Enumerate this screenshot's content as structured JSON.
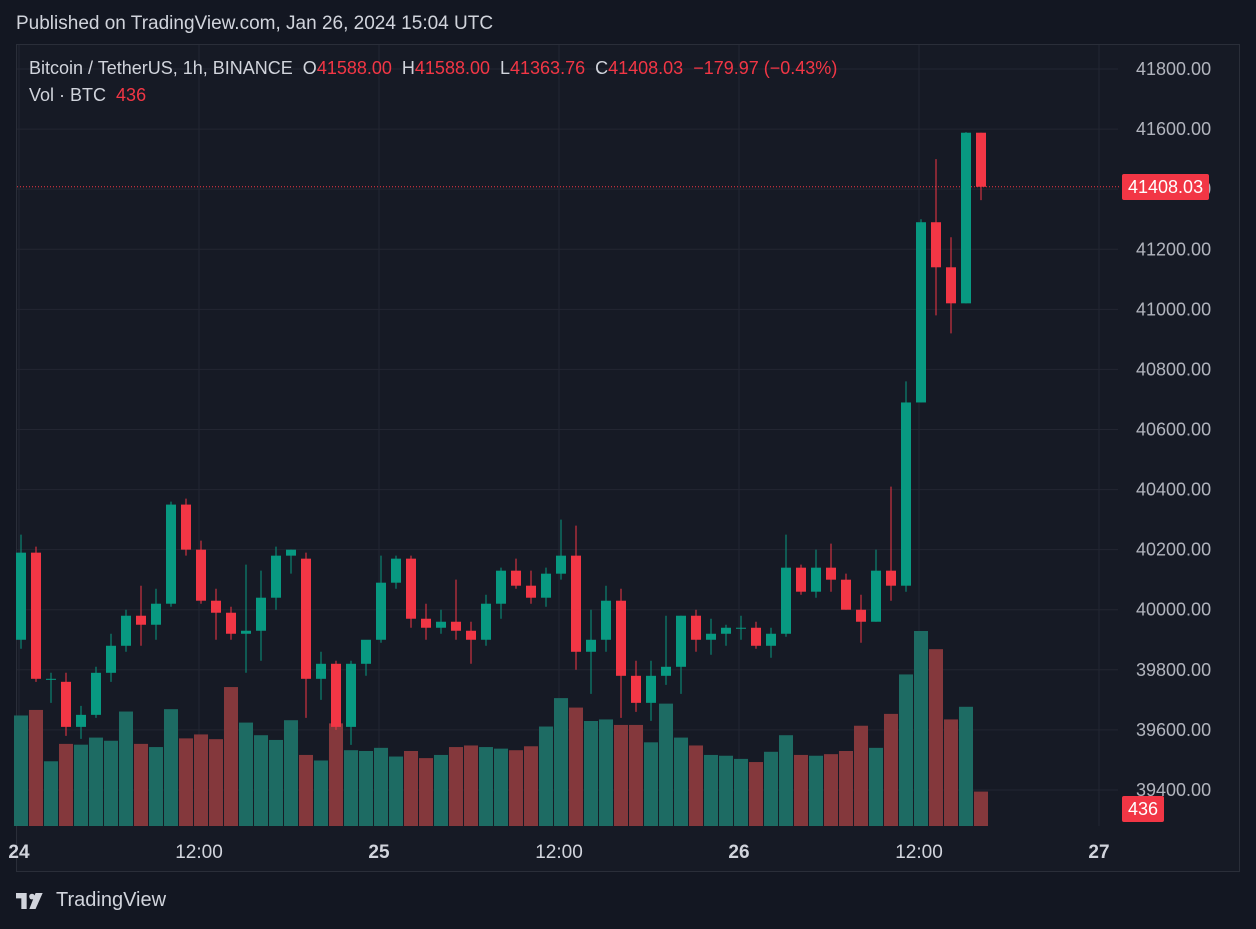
{
  "header": {
    "published": "Published on TradingView.com, Jan 26, 2024 15:04 UTC"
  },
  "legend": {
    "symbol": "Bitcoin / TetherUS, 1h, BINANCE",
    "open_label": "O",
    "open": "41588.00",
    "high_label": "H",
    "high": "41588.00",
    "low_label": "L",
    "low": "41363.76",
    "close_label": "C",
    "close": "41408.03",
    "change": "−179.97 (−0.43%)",
    "vol_label": "Vol · BTC",
    "vol_value": "436"
  },
  "price_tag": "41408.03",
  "vol_tag": "436",
  "footer": {
    "brand": "TradingView"
  },
  "colors": {
    "up": "#089981",
    "down": "#f23645",
    "background": "#161a25",
    "grid": "#232632"
  },
  "chart_data": {
    "type": "candlestick",
    "interval": "1h",
    "yaxis": {
      "ticks": [
        39400,
        39600,
        39800,
        40000,
        40200,
        40400,
        40600,
        40800,
        41000,
        41200,
        41400,
        41600,
        41800
      ],
      "tick_labels": [
        "39400.00",
        "39600.00",
        "39800.00",
        "40000.00",
        "40200.00",
        "40400.00",
        "40600.00",
        "40800.00",
        "41000.00",
        "41200.00",
        "41400.00",
        "41600.00",
        "41800.00"
      ],
      "range": [
        39280,
        41880
      ]
    },
    "xaxis": {
      "tick_labels": [
        "24",
        "12:00",
        "25",
        "12:00",
        "26",
        "12:00",
        "27"
      ],
      "tick_index": [
        0,
        12,
        24,
        36,
        48,
        60,
        72
      ]
    },
    "last_price": 41408.03,
    "candles": [
      {
        "o": 39900,
        "h": 40250,
        "l": 39870,
        "c": 40190
      },
      {
        "o": 40190,
        "h": 40210,
        "l": 39760,
        "c": 39770
      },
      {
        "o": 39770,
        "h": 39790,
        "l": 39690,
        "c": 39770
      },
      {
        "o": 39760,
        "h": 39790,
        "l": 39580,
        "c": 39610
      },
      {
        "o": 39610,
        "h": 39680,
        "l": 39570,
        "c": 39650
      },
      {
        "o": 39650,
        "h": 39810,
        "l": 39640,
        "c": 39790
      },
      {
        "o": 39790,
        "h": 39920,
        "l": 39760,
        "c": 39880
      },
      {
        "o": 39880,
        "h": 40000,
        "l": 39860,
        "c": 39980
      },
      {
        "o": 39980,
        "h": 40080,
        "l": 39880,
        "c": 39950
      },
      {
        "o": 39950,
        "h": 40070,
        "l": 39900,
        "c": 40020
      },
      {
        "o": 40020,
        "h": 40360,
        "l": 40010,
        "c": 40350
      },
      {
        "o": 40350,
        "h": 40370,
        "l": 40180,
        "c": 40200
      },
      {
        "o": 40200,
        "h": 40230,
        "l": 40020,
        "c": 40030
      },
      {
        "o": 40030,
        "h": 40070,
        "l": 39900,
        "c": 39990
      },
      {
        "o": 39990,
        "h": 40010,
        "l": 39900,
        "c": 39920
      },
      {
        "o": 39920,
        "h": 40150,
        "l": 39790,
        "c": 39930
      },
      {
        "o": 39930,
        "h": 40130,
        "l": 39830,
        "c": 40040
      },
      {
        "o": 40040,
        "h": 40210,
        "l": 40000,
        "c": 40180
      },
      {
        "o": 40180,
        "h": 40200,
        "l": 40120,
        "c": 40200
      },
      {
        "o": 40170,
        "h": 40190,
        "l": 39640,
        "c": 39770
      },
      {
        "o": 39770,
        "h": 39860,
        "l": 39700,
        "c": 39820
      },
      {
        "o": 39820,
        "h": 39830,
        "l": 39600,
        "c": 39610
      },
      {
        "o": 39610,
        "h": 39830,
        "l": 39550,
        "c": 39820
      },
      {
        "o": 39820,
        "h": 39880,
        "l": 39780,
        "c": 39900
      },
      {
        "o": 39900,
        "h": 40180,
        "l": 39890,
        "c": 40090
      },
      {
        "o": 40090,
        "h": 40180,
        "l": 40070,
        "c": 40170
      },
      {
        "o": 40170,
        "h": 40180,
        "l": 39940,
        "c": 39970
      },
      {
        "o": 39970,
        "h": 40020,
        "l": 39900,
        "c": 39940
      },
      {
        "o": 39940,
        "h": 40000,
        "l": 39920,
        "c": 39960
      },
      {
        "o": 39960,
        "h": 40100,
        "l": 39900,
        "c": 39930
      },
      {
        "o": 39930,
        "h": 39960,
        "l": 39820,
        "c": 39900
      },
      {
        "o": 39900,
        "h": 40050,
        "l": 39880,
        "c": 40020
      },
      {
        "o": 40020,
        "h": 40140,
        "l": 39970,
        "c": 40130
      },
      {
        "o": 40130,
        "h": 40170,
        "l": 40070,
        "c": 40080
      },
      {
        "o": 40080,
        "h": 40130,
        "l": 40020,
        "c": 40040
      },
      {
        "o": 40040,
        "h": 40140,
        "l": 40010,
        "c": 40120
      },
      {
        "o": 40120,
        "h": 40300,
        "l": 40100,
        "c": 40180
      },
      {
        "o": 40180,
        "h": 40280,
        "l": 39800,
        "c": 39860
      },
      {
        "o": 39860,
        "h": 40000,
        "l": 39720,
        "c": 39900
      },
      {
        "o": 39900,
        "h": 40080,
        "l": 39860,
        "c": 40030
      },
      {
        "o": 40030,
        "h": 40070,
        "l": 39640,
        "c": 39780
      },
      {
        "o": 39780,
        "h": 39830,
        "l": 39660,
        "c": 39690
      },
      {
        "o": 39690,
        "h": 39830,
        "l": 39630,
        "c": 39780
      },
      {
        "o": 39780,
        "h": 39980,
        "l": 39750,
        "c": 39810
      },
      {
        "o": 39810,
        "h": 39980,
        "l": 39720,
        "c": 39980
      },
      {
        "o": 39980,
        "h": 40000,
        "l": 39860,
        "c": 39900
      },
      {
        "o": 39900,
        "h": 39970,
        "l": 39850,
        "c": 39920
      },
      {
        "o": 39920,
        "h": 39950,
        "l": 39880,
        "c": 39940
      },
      {
        "o": 39940,
        "h": 39980,
        "l": 39900,
        "c": 39940
      },
      {
        "o": 39940,
        "h": 39960,
        "l": 39870,
        "c": 39880
      },
      {
        "o": 39880,
        "h": 39940,
        "l": 39840,
        "c": 39920
      },
      {
        "o": 39920,
        "h": 40250,
        "l": 39910,
        "c": 40140
      },
      {
        "o": 40140,
        "h": 40150,
        "l": 40050,
        "c": 40060
      },
      {
        "o": 40060,
        "h": 40200,
        "l": 40040,
        "c": 40140
      },
      {
        "o": 40140,
        "h": 40220,
        "l": 40060,
        "c": 40100
      },
      {
        "o": 40100,
        "h": 40120,
        "l": 40000,
        "c": 40000
      },
      {
        "o": 40000,
        "h": 40050,
        "l": 39890,
        "c": 39960
      },
      {
        "o": 39960,
        "h": 40200,
        "l": 39960,
        "c": 40130
      },
      {
        "o": 40130,
        "h": 40410,
        "l": 40030,
        "c": 40080
      },
      {
        "o": 40080,
        "h": 40760,
        "l": 40060,
        "c": 40690
      },
      {
        "o": 40690,
        "h": 41300,
        "l": 40690,
        "c": 41290
      },
      {
        "o": 41290,
        "h": 41500,
        "l": 40980,
        "c": 41140
      },
      {
        "o": 41140,
        "h": 41240,
        "l": 40920,
        "c": 41020
      },
      {
        "o": 41020,
        "h": 41590,
        "l": 41020,
        "c": 41588
      },
      {
        "o": 41588,
        "h": 41588,
        "l": 41363.76,
        "c": 41408.03
      }
    ],
    "volume": [
      1400,
      1470,
      820,
      1040,
      1030,
      1120,
      1080,
      1450,
      1040,
      1000,
      1480,
      1110,
      1160,
      1100,
      1760,
      1310,
      1150,
      1090,
      1340,
      900,
      830,
      1300,
      960,
      950,
      990,
      880,
      950,
      860,
      900,
      1000,
      1020,
      1000,
      980,
      960,
      1010,
      1260,
      1620,
      1500,
      1330,
      1350,
      1280,
      1280,
      1060,
      1550,
      1120,
      1020,
      900,
      890,
      850,
      810,
      940,
      1150,
      900,
      890,
      910,
      950,
      1270,
      990,
      1420,
      1920,
      2470,
      2240,
      1350,
      1510,
      436
    ]
  }
}
